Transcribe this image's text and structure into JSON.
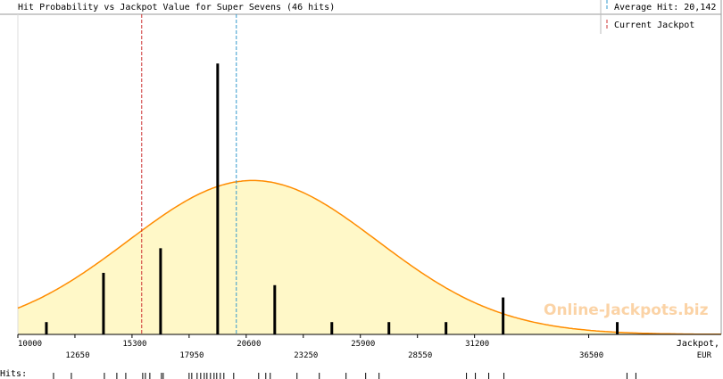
{
  "chart_data": {
    "type": "bar",
    "title": "Hit Probability vs Jackpot Value for Super Sevens (46 hits)",
    "x_label": "Jackpot,",
    "x_unit": "EUR",
    "hits_label": "Hits:",
    "watermark": "Online-Jackpots.biz",
    "average_label": "Average Hit: 20,142",
    "average_value": 20142,
    "average_color": "#3399cc",
    "current_label": "Current Jackpot",
    "current_value": 15750,
    "current_color": "#cc3333",
    "x": [
      11325,
      13975,
      16625,
      19275,
      21925,
      24575,
      27225,
      29875,
      32525,
      37825
    ],
    "values": [
      1,
      5,
      7,
      22,
      4,
      1,
      1,
      1,
      3,
      1
    ],
    "color": "#000000",
    "curve_mean": 20900,
    "curve_sd": 5800,
    "curve_peak": 12.5,
    "curve_color": "#ff8c00",
    "curve_fill": "#fff8c8",
    "hits": [
      11656,
      12484,
      14016,
      14595,
      15010,
      15796,
      15920,
      16127,
      16665,
      16748,
      17949,
      18073,
      18321,
      18487,
      18653,
      18777,
      18942,
      19108,
      19232,
      19398,
      19563,
      20019,
      21178,
      21509,
      21716,
      22958,
      23993,
      25235,
      26146,
      26767,
      30824,
      31238,
      31859,
      32563,
      38276,
      38690
    ],
    "xlim": [
      10000,
      42650
    ],
    "ylim": [
      0,
      26
    ],
    "xticks": [
      10000,
      12650,
      15300,
      17950,
      20600,
      23250,
      25900,
      28550,
      31200,
      36500
    ]
  }
}
